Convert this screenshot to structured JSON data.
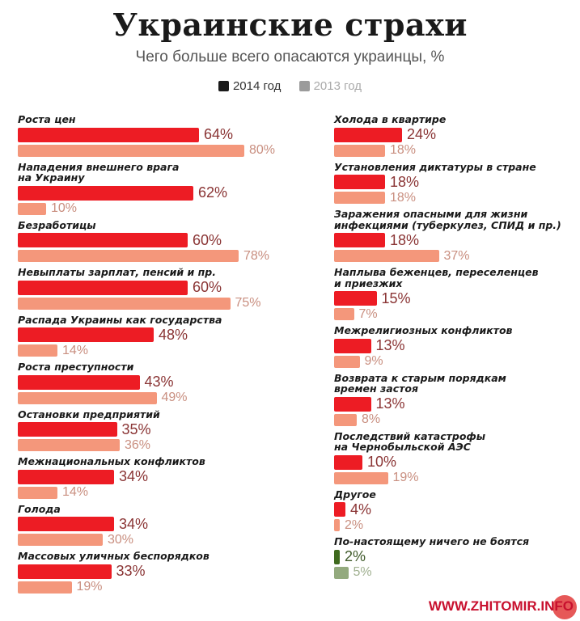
{
  "title": "Украинские страхи",
  "subtitle": "Чего больше всего опасаются  украинцы, %",
  "legend": [
    {
      "label": "2014 год",
      "color": "#1a1a1a"
    },
    {
      "label": "2013 год",
      "color": "#9b9b9b"
    }
  ],
  "watermark": "WWW.ZHITOMIR.INFO",
  "colors": {
    "bar2014": "#ed1c24",
    "bar2013": "#f4977b",
    "text2014": "#8a3434",
    "text2013": "#c98f80",
    "green2014": "#3f6a1e",
    "green2013": "#93aa7e",
    "greenText2014": "#3f5a2a",
    "greenText2013": "#a0b090"
  },
  "chart_data": {
    "type": "bar",
    "orientation": "horizontal",
    "title": "Украинские страхи",
    "subtitle": "Чего больше всего опасаются  украинцы, %",
    "series_names": [
      "2014 год",
      "2013 год"
    ],
    "unit": "%",
    "columns": [
      [
        {
          "label": "Роста цен",
          "v2014": 64,
          "v2013": 80
        },
        {
          "label": "Нападения внешнего врага\nна Украину",
          "v2014": 62,
          "v2013": 10
        },
        {
          "label": "Безработицы",
          "v2014": 60,
          "v2013": 78
        },
        {
          "label": "Невыплаты зарплат, пенсий и пр.",
          "v2014": 60,
          "v2013": 75
        },
        {
          "label": "Распада Украины как государства",
          "v2014": 48,
          "v2013": 14
        },
        {
          "label": "Роста преступности",
          "v2014": 43,
          "v2013": 49
        },
        {
          "label": "Остановки предприятий",
          "v2014": 35,
          "v2013": 36
        },
        {
          "label": "Межнациональных конфликтов",
          "v2014": 34,
          "v2013": 14
        },
        {
          "label": "Голода",
          "v2014": 34,
          "v2013": 30
        },
        {
          "label": "Массовых уличных беспорядков",
          "v2014": 33,
          "v2013": 19
        }
      ],
      [
        {
          "label": "Холода в квартире",
          "v2014": 24,
          "v2013": 18
        },
        {
          "label": "Установления диктатуры в стране",
          "v2014": 18,
          "v2013": 18
        },
        {
          "label": "Заражения опасными для жизни\nинфекциями (туберкулез, СПИД и пр.)",
          "v2014": 18,
          "v2013": 37
        },
        {
          "label": "Наплыва беженцев, переселенцев\nи приезжих",
          "v2014": 15,
          "v2013": 7
        },
        {
          "label": "Межрелигиозных конфликтов",
          "v2014": 13,
          "v2013": 9
        },
        {
          "label": "Возврата к старым порядкам\nвремен застоя",
          "v2014": 13,
          "v2013": 8
        },
        {
          "label": "Последствий катастрофы\nна Чернобыльской АЭС",
          "v2014": 10,
          "v2013": 19
        },
        {
          "label": "Другое",
          "v2014": 4,
          "v2013": 2
        },
        {
          "label": "По-настоящему ничего не боятся",
          "v2014": 2,
          "v2013": 5,
          "green": true
        }
      ]
    ]
  }
}
